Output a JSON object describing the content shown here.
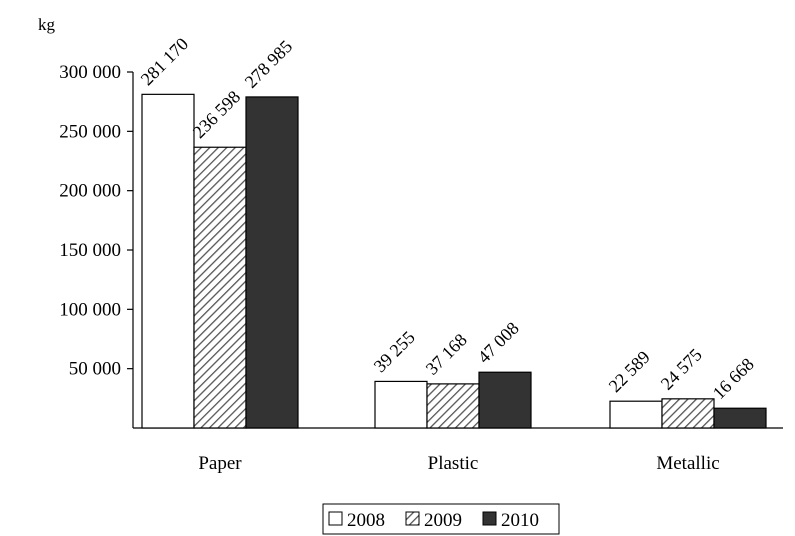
{
  "chart_data": {
    "type": "bar",
    "title": "",
    "xlabel": "",
    "ylabel": "kg",
    "ylim": [
      0,
      300000
    ],
    "yticks": [
      "50 000",
      "100 000",
      "150 000",
      "200 000",
      "250 000",
      "300 000"
    ],
    "yticks_values": [
      50000,
      100000,
      150000,
      200000,
      250000,
      300000
    ],
    "categories": [
      "Paper",
      "Plastic",
      "Metallic"
    ],
    "series": [
      {
        "name": "2008",
        "values": [
          281170,
          39255,
          22589
        ],
        "labels": [
          "281 170",
          "39 255",
          "22 589"
        ],
        "fill": "solid-white"
      },
      {
        "name": "2009",
        "values": [
          236598,
          37168,
          24575
        ],
        "labels": [
          "236 598",
          "37 168",
          "24 575"
        ],
        "fill": "diagonal-hatch"
      },
      {
        "name": "2010",
        "values": [
          278985,
          47008,
          16668
        ],
        "labels": [
          "278 985",
          "47 008",
          "16 668"
        ],
        "fill": "solid-dark"
      }
    ],
    "grid": false,
    "legend": "bottom-center",
    "colors": {
      "dark": "#333333",
      "white": "#ffffff",
      "hatch": "#555555"
    }
  }
}
